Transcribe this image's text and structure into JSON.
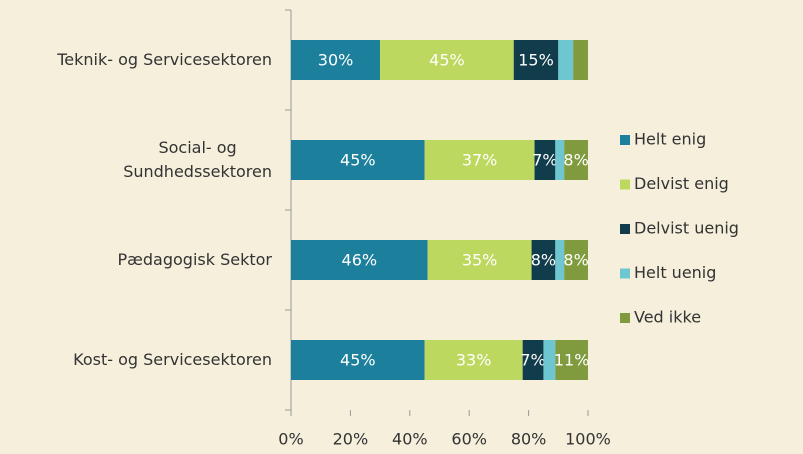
{
  "chart_data": {
    "type": "stacked_barh",
    "categories": [
      "Teknik- og Servicesektoren",
      "Social- og\nSundhedssektoren",
      "Pædagogisk Sektor",
      "Kost- og Servicesektoren"
    ],
    "series": [
      {
        "name": "Helt enig",
        "color": "#1c7f9b",
        "values": [
          30,
          45,
          46,
          45
        ],
        "value_labels": [
          "30%",
          "45%",
          "46%",
          "45%"
        ]
      },
      {
        "name": "Delvist enig",
        "color": "#bdd85e",
        "values": [
          45,
          37,
          35,
          33
        ],
        "value_labels": [
          "45%",
          "37%",
          "35%",
          "33%"
        ]
      },
      {
        "name": "Delvist uenig",
        "color": "#103c4b",
        "values": [
          15,
          7,
          8,
          7
        ],
        "value_labels": [
          "15%",
          "7%",
          "8%",
          "7%"
        ]
      },
      {
        "name": "Helt uenig",
        "color": "#6dc6d0",
        "values": [
          5,
          3,
          3,
          4
        ]
      },
      {
        "name": "Ved ikke",
        "color": "#7f9b3e",
        "values": [
          5,
          8,
          8,
          11
        ],
        "value_labels": [
          null,
          "8%",
          "8%",
          "11%"
        ]
      }
    ],
    "xlim": [
      0,
      100
    ],
    "xticks": [
      {
        "value": 0,
        "label": "0%"
      },
      {
        "value": 20,
        "label": "20%"
      },
      {
        "value": 40,
        "label": "40%"
      },
      {
        "value": 60,
        "label": "60%"
      },
      {
        "value": 80,
        "label": "80%"
      },
      {
        "value": 100,
        "label": "100%"
      }
    ],
    "legend": "right"
  }
}
